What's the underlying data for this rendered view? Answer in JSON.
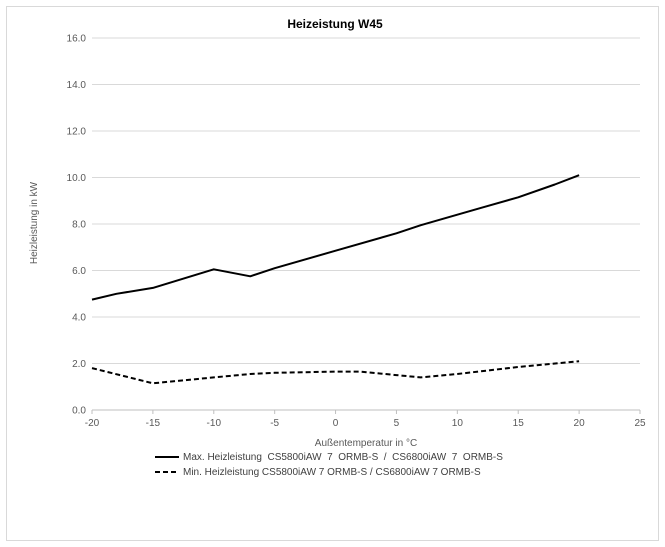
{
  "chart_data": {
    "type": "line",
    "title": "Heizeistung W45",
    "xlabel": "Außentemperatur in °C",
    "ylabel": "Heizleistung in kW",
    "xlim": [
      -20,
      25
    ],
    "ylim": [
      0,
      16
    ],
    "xticks": [
      -20,
      -15,
      -10,
      -5,
      0,
      5,
      10,
      15,
      20,
      25
    ],
    "yticks": [
      "0.0",
      "2.0",
      "4.0",
      "6.0",
      "8.0",
      "10.0",
      "12.0",
      "14.0",
      "16.0"
    ],
    "grid": "horizontal",
    "legend_position": "bottom",
    "series": [
      {
        "name": "Max. Heizleistung  CS5800iAW  7  ORMB-S  /  CS6800iAW  7  ORMB-S",
        "style": "solid",
        "color": "#000000",
        "x": [
          -20,
          -18,
          -15,
          -10,
          -7,
          -5,
          0,
          5,
          7,
          10,
          12,
          15,
          18,
          20
        ],
        "y": [
          4.75,
          5.0,
          5.25,
          6.05,
          5.75,
          6.1,
          6.85,
          7.6,
          7.95,
          8.4,
          8.7,
          9.15,
          9.7,
          10.1
        ]
      },
      {
        "name": "Min. Heizleistung CS5800iAW 7 ORMB-S / CS6800iAW 7 ORMB-S",
        "style": "dashed",
        "color": "#000000",
        "x": [
          -20,
          -15,
          -10,
          -7,
          -5,
          0,
          2,
          5,
          7,
          10,
          15,
          20
        ],
        "y": [
          1.8,
          1.15,
          1.4,
          1.55,
          1.6,
          1.65,
          1.65,
          1.5,
          1.4,
          1.55,
          1.85,
          2.1
        ]
      }
    ]
  }
}
